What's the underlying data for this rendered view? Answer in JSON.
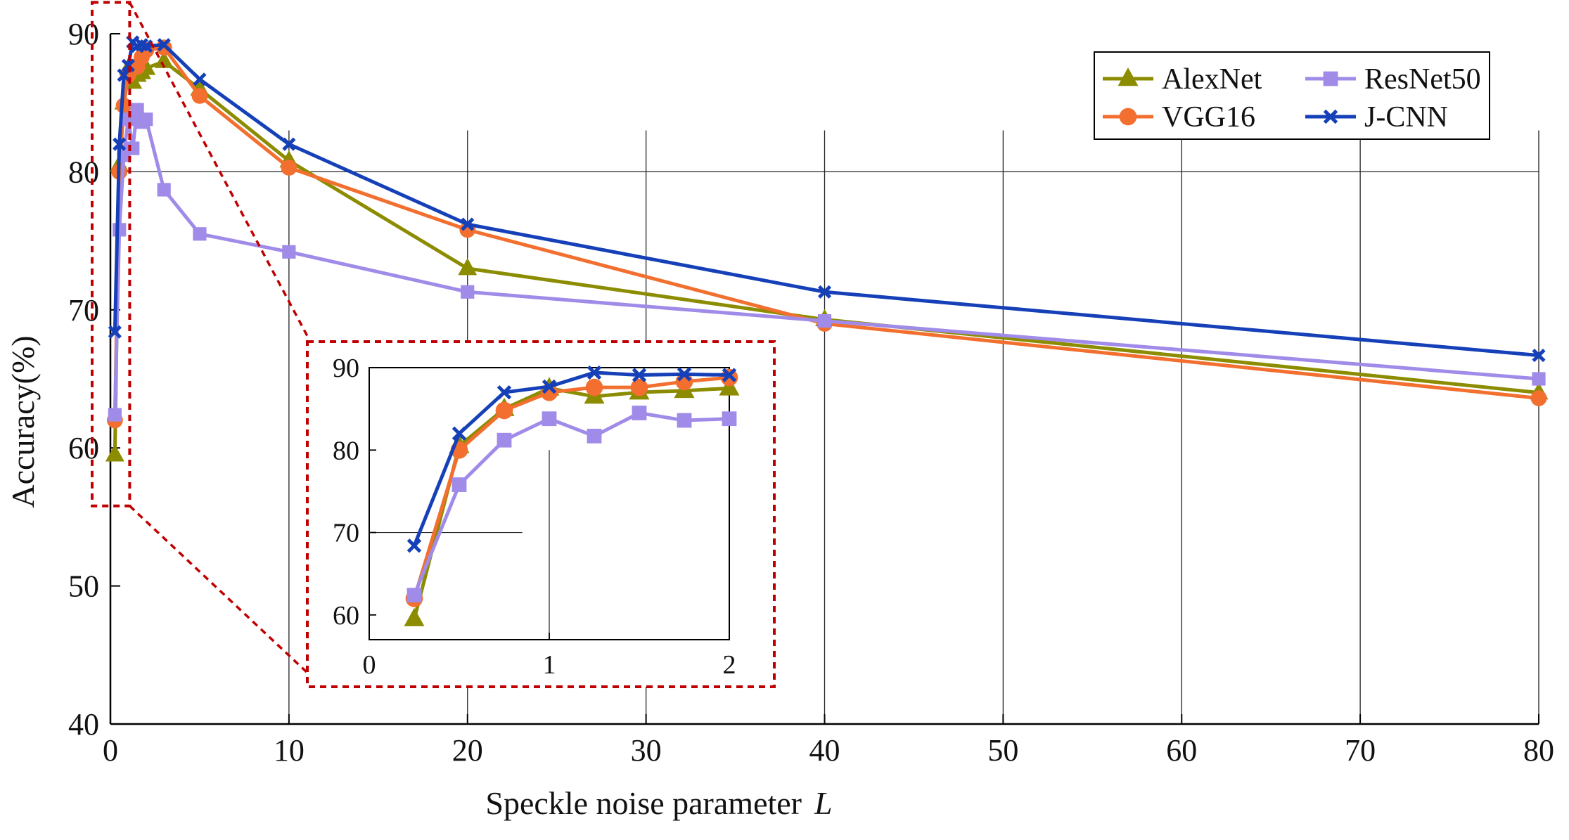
{
  "chart_data": {
    "type": "line",
    "xlabel": "Speckle noise parameter",
    "xlabel_var": "L",
    "ylabel": "Accuracy(%)",
    "xlim": [
      0,
      80
    ],
    "ylim": [
      40,
      90
    ],
    "xticks": [
      0,
      10,
      20,
      30,
      40,
      50,
      60,
      70,
      80
    ],
    "yticks": [
      40,
      50,
      60,
      70,
      80,
      90
    ],
    "gridlines_x": [
      10,
      20,
      30,
      40,
      50,
      60,
      70,
      80
    ],
    "gridline_y": 80,
    "legend_position": "top-right",
    "series": [
      {
        "name": "AlexNet",
        "color": "#8c8c00",
        "marker": "triangle",
        "x": [
          0.25,
          0.5,
          0.75,
          1,
          1.25,
          1.5,
          1.75,
          2,
          3,
          5,
          10,
          20,
          40,
          80
        ],
        "values": [
          59.5,
          80.5,
          85,
          87.5,
          86.5,
          87,
          87.2,
          87.5,
          88,
          86,
          80.8,
          73,
          69.3,
          64
        ]
      },
      {
        "name": "VGG16",
        "color": "#f26f2f",
        "marker": "circle",
        "x": [
          0.25,
          0.5,
          0.75,
          1,
          1.25,
          1.5,
          1.75,
          2,
          3,
          5,
          10,
          20,
          40,
          80
        ],
        "values": [
          62,
          80,
          84.8,
          87,
          87.6,
          87.6,
          88.3,
          88.8,
          89,
          85.5,
          80.3,
          75.8,
          69,
          63.6
        ]
      },
      {
        "name": "ResNet50",
        "color": "#a08be8",
        "marker": "square",
        "x": [
          0.25,
          0.5,
          0.75,
          1,
          1.25,
          1.5,
          1.75,
          2,
          3,
          5,
          10,
          20,
          40,
          80
        ],
        "values": [
          62.4,
          75.8,
          81.2,
          83.8,
          81.7,
          84.5,
          83.6,
          83.8,
          78.7,
          75.5,
          74.2,
          71.3,
          69.2,
          65
        ]
      },
      {
        "name": "J-CNN",
        "color": "#1540b8",
        "marker": "x",
        "x": [
          0.25,
          0.5,
          0.75,
          1,
          1.25,
          1.5,
          1.75,
          2,
          3,
          5,
          10,
          20,
          40,
          80
        ],
        "values": [
          68.4,
          82,
          87,
          87.7,
          89.4,
          89.1,
          89.2,
          89.1,
          89.2,
          86.7,
          82,
          76.2,
          71.3,
          66.7
        ]
      }
    ],
    "inset": {
      "xlim": [
        0,
        2
      ],
      "ylim": [
        57,
        90
      ],
      "xticks": [
        0,
        1,
        2
      ],
      "yticks": [
        60,
        70,
        80,
        90
      ],
      "highlight_region": {
        "x": [
          0,
          1
        ],
        "y": [
          56,
          91
        ]
      }
    }
  }
}
